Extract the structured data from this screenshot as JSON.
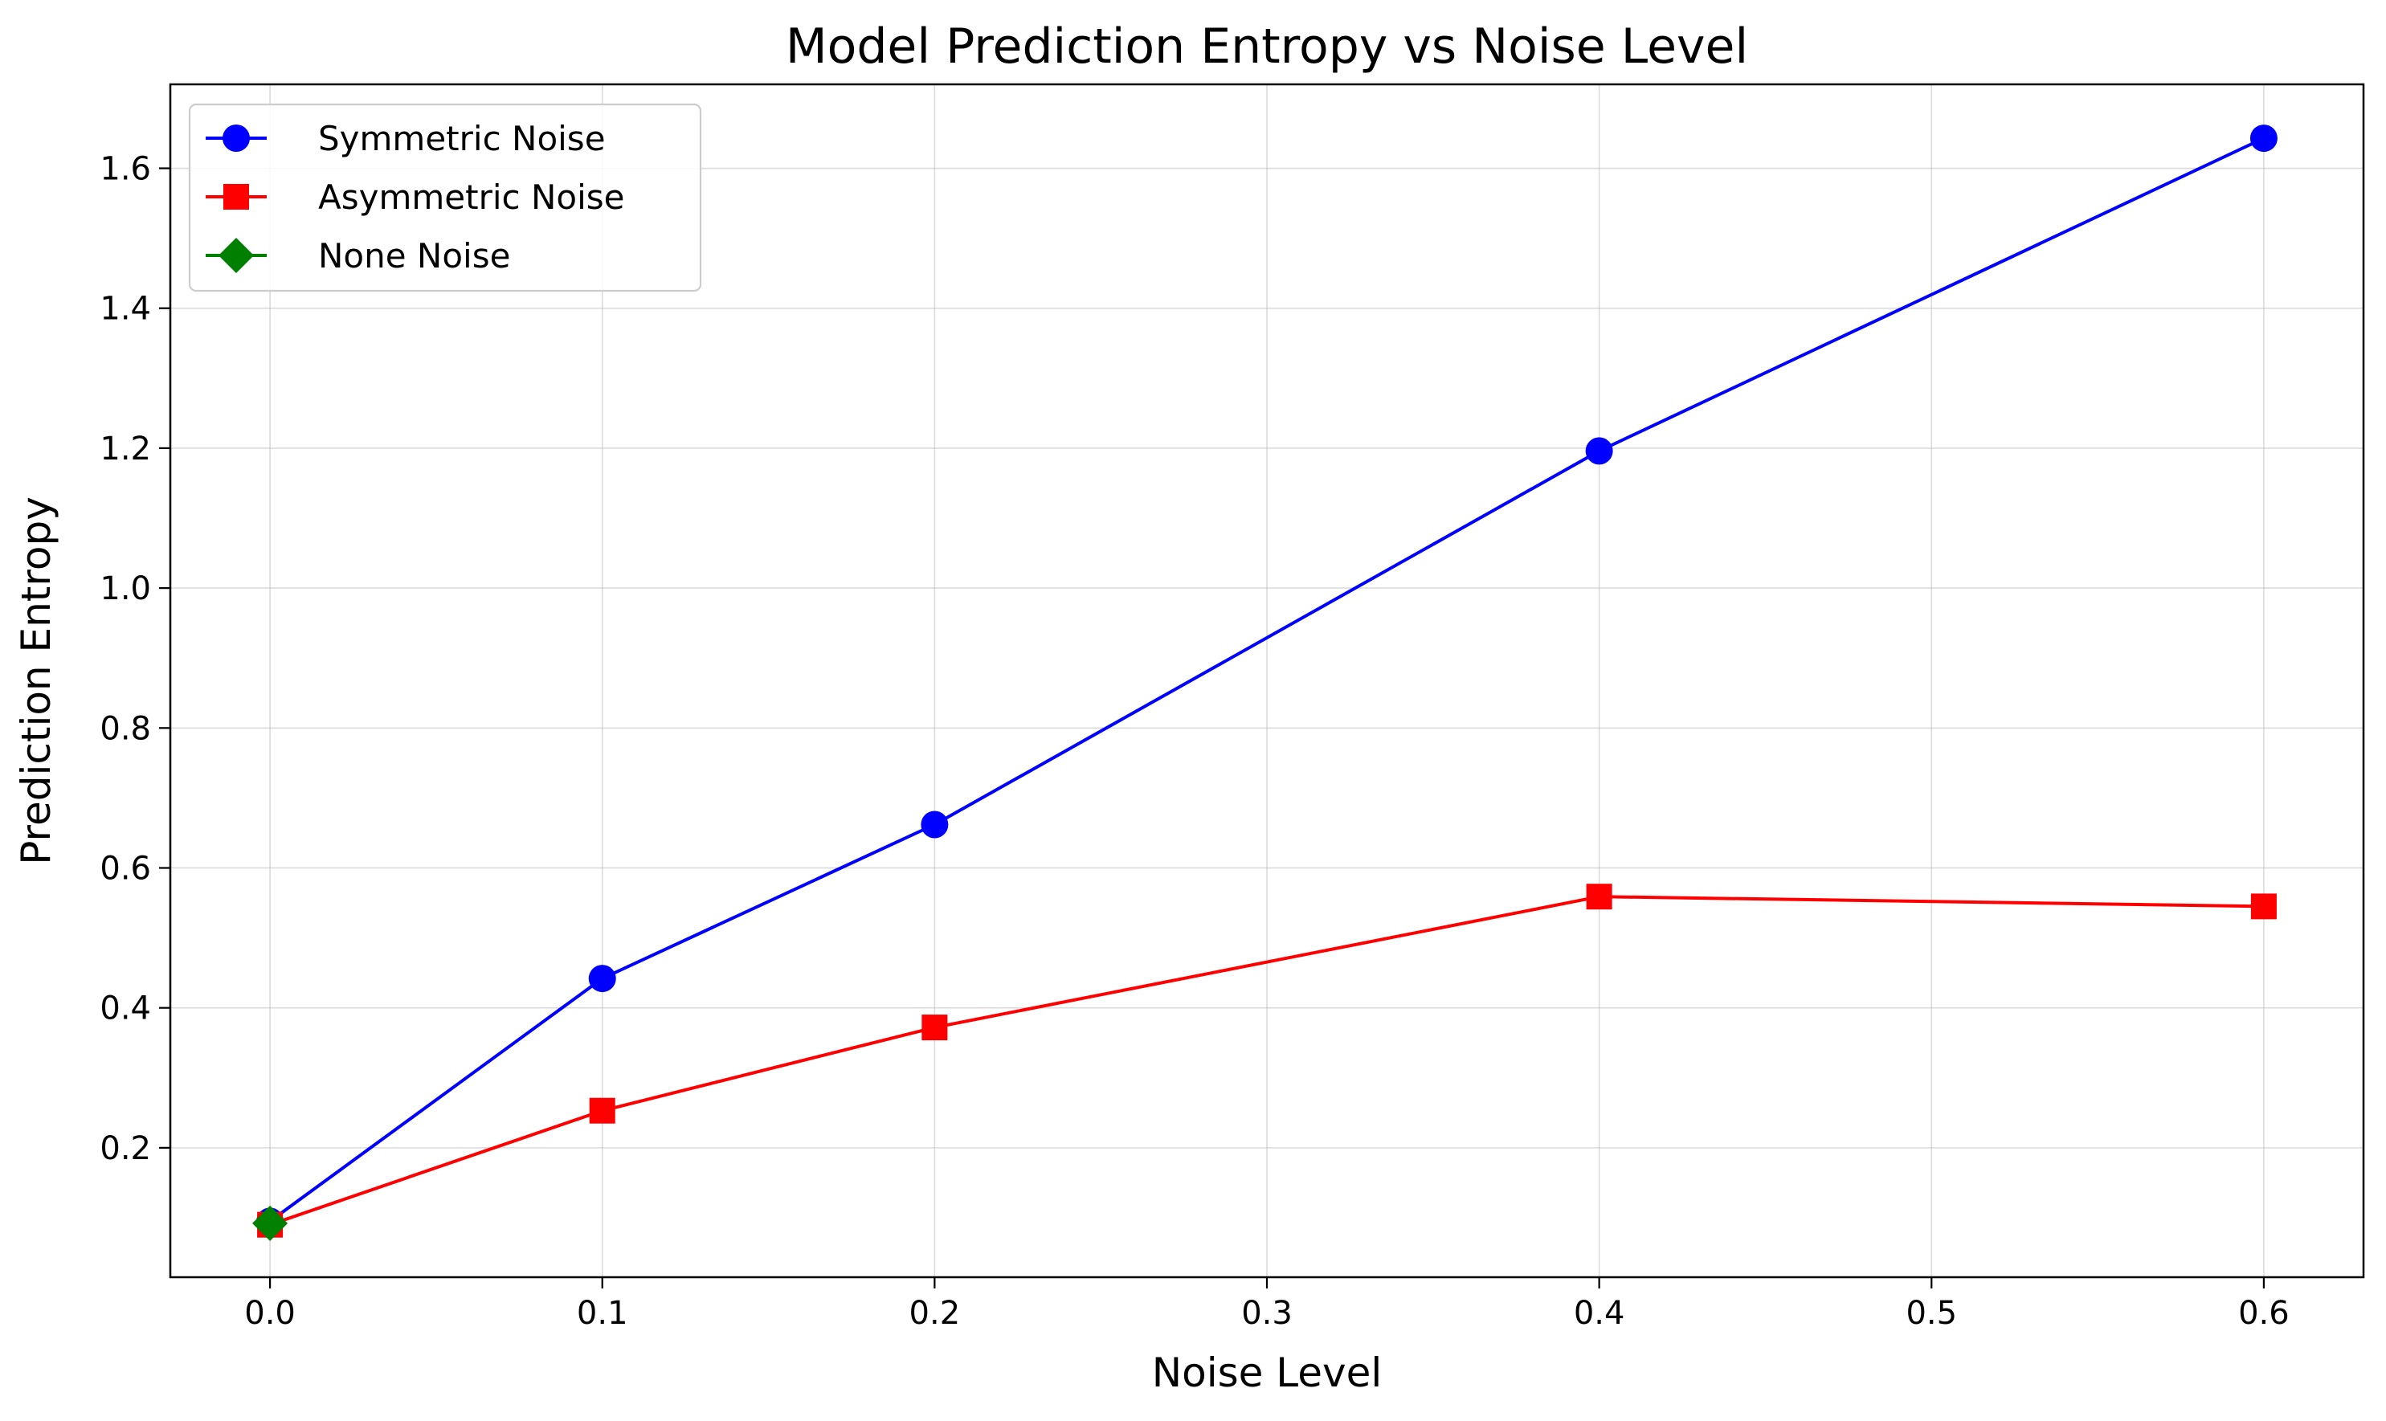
{
  "chart_data": {
    "type": "line",
    "title": "Model Prediction Entropy vs Noise Level",
    "xlabel": "Noise Level",
    "ylabel": "Prediction Entropy",
    "xlim": [
      -0.03,
      0.63
    ],
    "ylim": [
      0.015,
      1.72
    ],
    "xticks": [
      0.0,
      0.1,
      0.2,
      0.3,
      0.4,
      0.5,
      0.6
    ],
    "xtick_labels": [
      "0.0",
      "0.1",
      "0.2",
      "0.3",
      "0.4",
      "0.5",
      "0.6"
    ],
    "yticks": [
      0.2,
      0.4,
      0.6,
      0.8,
      1.0,
      1.2,
      1.4,
      1.6
    ],
    "ytick_labels": [
      "0.2",
      "0.4",
      "0.6",
      "0.8",
      "1.0",
      "1.2",
      "1.4",
      "1.6"
    ],
    "grid": true,
    "legend_position": "top-left",
    "series": [
      {
        "name": "Symmetric Noise",
        "color": "#0000ff",
        "marker": "circle",
        "x": [
          0.0,
          0.1,
          0.2,
          0.4,
          0.6
        ],
        "y": [
          0.095,
          0.442,
          0.662,
          1.196,
          1.643
        ]
      },
      {
        "name": "Asymmetric Noise",
        "color": "#ff0000",
        "marker": "square",
        "x": [
          0.0,
          0.1,
          0.2,
          0.4,
          0.6
        ],
        "y": [
          0.09,
          0.253,
          0.372,
          0.559,
          0.545
        ]
      },
      {
        "name": "None Noise",
        "color": "#008000",
        "marker": "diamond",
        "x": [
          0.0
        ],
        "y": [
          0.092
        ]
      }
    ]
  }
}
